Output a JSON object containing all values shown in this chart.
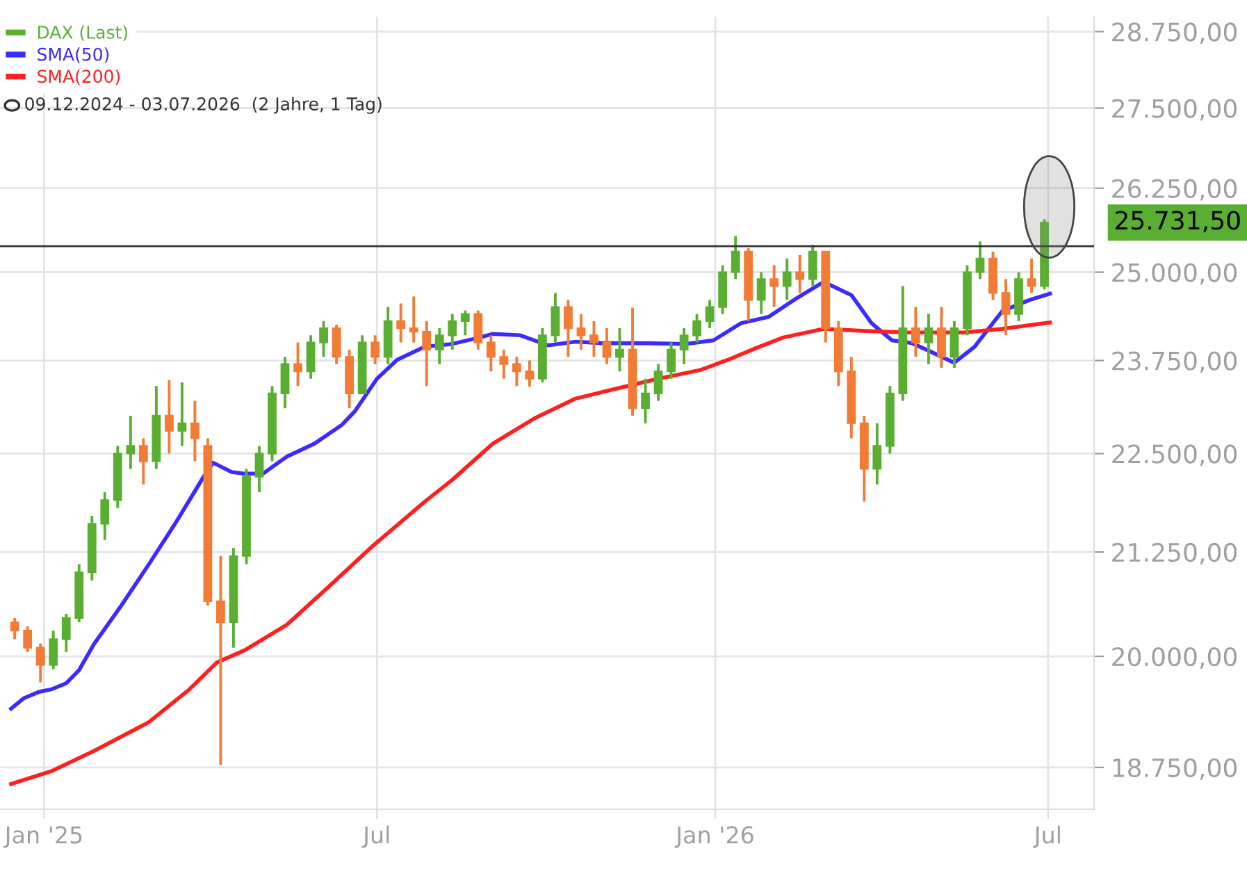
{
  "chart_data": {
    "type": "candlestick",
    "series": [
      {
        "name": "DAX (Last)",
        "color": "#5aaf32",
        "x": [
          "2024-12-16",
          "2024-12-23",
          "2024-12-30",
          "2025-01-06",
          "2025-01-13",
          "2025-01-20",
          "2025-01-27",
          "2025-02-03",
          "2025-02-10",
          "2025-02-17",
          "2025-02-24",
          "2025-03-03",
          "2025-03-10",
          "2025-03-17",
          "2025-03-24",
          "2025-03-31",
          "2025-04-07",
          "2025-04-14",
          "2025-04-21",
          "2025-04-28",
          "2025-05-05",
          "2025-05-12",
          "2025-05-19",
          "2025-05-26",
          "2025-06-02",
          "2025-06-09",
          "2025-06-16",
          "2025-06-23",
          "2025-06-30",
          "2025-07-07",
          "2025-07-14",
          "2025-07-21",
          "2025-07-28",
          "2025-08-04",
          "2025-08-11",
          "2025-08-18",
          "2025-08-25",
          "2025-09-01",
          "2025-09-08",
          "2025-09-15",
          "2025-09-22",
          "2025-09-29",
          "2025-10-06",
          "2025-10-13",
          "2025-10-20",
          "2025-10-27",
          "2025-11-03",
          "2025-11-10",
          "2025-11-17",
          "2025-11-24",
          "2025-12-01",
          "2025-12-08",
          "2025-12-15",
          "2025-12-22",
          "2025-12-29",
          "2026-01-05",
          "2026-01-12",
          "2026-01-19",
          "2026-01-26",
          "2026-02-02",
          "2026-02-09",
          "2026-02-16",
          "2026-02-23",
          "2026-03-02",
          "2026-03-09",
          "2026-03-16",
          "2026-03-23",
          "2026-03-30",
          "2026-04-06",
          "2026-04-13",
          "2026-04-20",
          "2026-04-27",
          "2026-05-04",
          "2026-05-11",
          "2026-05-18",
          "2026-05-25",
          "2026-06-01",
          "2026-06-08",
          "2026-06-15",
          "2026-06-22",
          "2026-06-29"
        ],
        "ohlc": [
          [
            20400,
            20450,
            20200,
            20300
          ],
          [
            20300,
            20350,
            20050,
            20100
          ],
          [
            20100,
            20150,
            19700,
            19900
          ],
          [
            19900,
            20300,
            19850,
            20200
          ],
          [
            20200,
            20500,
            20050,
            20450
          ],
          [
            20450,
            21100,
            20400,
            21000
          ],
          [
            21000,
            21700,
            20900,
            21600
          ],
          [
            21600,
            22000,
            21400,
            21900
          ],
          [
            21900,
            22600,
            21800,
            22500
          ],
          [
            22500,
            23000,
            22300,
            22600
          ],
          [
            22600,
            22700,
            22100,
            22400
          ],
          [
            22400,
            23400,
            22300,
            23000
          ],
          [
            23000,
            23480,
            22500,
            22800
          ],
          [
            22800,
            23450,
            22600,
            22900
          ],
          [
            22900,
            23200,
            22400,
            22700
          ],
          [
            22600,
            22700,
            20600,
            20650
          ],
          [
            20650,
            21200,
            18780,
            20400
          ],
          [
            20400,
            21300,
            20100,
            21200
          ],
          [
            21200,
            22300,
            21100,
            22200
          ],
          [
            22200,
            22600,
            22000,
            22500
          ],
          [
            22500,
            23400,
            22400,
            23300
          ],
          [
            23300,
            23800,
            23100,
            23700
          ],
          [
            23700,
            24000,
            23400,
            23600
          ],
          [
            23600,
            24100,
            23500,
            24000
          ],
          [
            24000,
            24300,
            23800,
            24200
          ],
          [
            24200,
            24250,
            23700,
            23800
          ],
          [
            23800,
            23900,
            23100,
            23300
          ],
          [
            23300,
            24100,
            23300,
            24000
          ],
          [
            24000,
            24100,
            23700,
            23800
          ],
          [
            23800,
            24500,
            23700,
            24300
          ],
          [
            24300,
            24550,
            24000,
            24200
          ],
          [
            24200,
            24650,
            24000,
            24150
          ],
          [
            24150,
            24300,
            23400,
            23900
          ],
          [
            23900,
            24200,
            23700,
            24100
          ],
          [
            24100,
            24400,
            23900,
            24300
          ],
          [
            24300,
            24450,
            24100,
            24400
          ],
          [
            24400,
            24450,
            23900,
            24000
          ],
          [
            24000,
            24100,
            23600,
            23800
          ],
          [
            23800,
            23900,
            23500,
            23700
          ],
          [
            23700,
            23800,
            23400,
            23600
          ],
          [
            23600,
            23750,
            23390,
            23500
          ],
          [
            23500,
            24200,
            23450,
            24100
          ],
          [
            24100,
            24700,
            24000,
            24500
          ],
          [
            24500,
            24600,
            23800,
            24200
          ],
          [
            24200,
            24400,
            23900,
            24100
          ],
          [
            24100,
            24300,
            23800,
            24000
          ],
          [
            24000,
            24200,
            23700,
            23800
          ],
          [
            23800,
            24200,
            23600,
            23900
          ],
          [
            23900,
            24490,
            23000,
            23100
          ],
          [
            23100,
            23500,
            22900,
            23300
          ],
          [
            23300,
            23700,
            23200,
            23600
          ],
          [
            23600,
            24000,
            23500,
            23900
          ],
          [
            23900,
            24200,
            23700,
            24100
          ],
          [
            24100,
            24400,
            24000,
            24300
          ],
          [
            24300,
            24600,
            24200,
            24500
          ],
          [
            24500,
            25100,
            24400,
            25000
          ],
          [
            25000,
            25530,
            24900,
            25300
          ],
          [
            25300,
            25350,
            24300,
            24600
          ],
          [
            24600,
            25000,
            24400,
            24900
          ],
          [
            24900,
            25100,
            24500,
            24800
          ],
          [
            24800,
            25200,
            24600,
            25000
          ],
          [
            25000,
            25250,
            24700,
            24900
          ],
          [
            24900,
            25400,
            24800,
            25300
          ],
          [
            25300,
            25300,
            24000,
            24200
          ],
          [
            24200,
            24300,
            23400,
            23600
          ],
          [
            23600,
            23800,
            22700,
            22900
          ],
          [
            22900,
            23000,
            21880,
            22300
          ],
          [
            22300,
            22900,
            22100,
            22600
          ],
          [
            22600,
            23400,
            22500,
            23300
          ],
          [
            23300,
            24800,
            23200,
            24200
          ],
          [
            24200,
            24500,
            23800,
            24000
          ],
          [
            24000,
            24400,
            23700,
            24200
          ],
          [
            24200,
            24500,
            23650,
            23800
          ],
          [
            23800,
            24300,
            23650,
            24200
          ],
          [
            24200,
            25100,
            24100,
            25000
          ],
          [
            25000,
            25450,
            24900,
            25200
          ],
          [
            25200,
            25300,
            24600,
            24700
          ],
          [
            24700,
            24900,
            24100,
            24400
          ],
          [
            24400,
            25000,
            24300,
            24900
          ],
          [
            24900,
            25200,
            24700,
            24800
          ],
          [
            24800,
            25780,
            24750,
            25731.5
          ]
        ],
        "colors": [
          "#f27b35",
          "#f27b35",
          "#f27b35",
          "#5aaf32",
          "#5aaf32",
          "#5aaf32",
          "#5aaf32",
          "#5aaf32",
          "#5aaf32",
          "#5aaf32",
          "#f27b35",
          "#5aaf32",
          "#f27b35",
          "#5aaf32",
          "#f27b35",
          "#f27b35",
          "#f27b35",
          "#5aaf32",
          "#5aaf32",
          "#5aaf32",
          "#5aaf32",
          "#5aaf32",
          "#f27b35",
          "#5aaf32",
          "#5aaf32",
          "#f27b35",
          "#f27b35",
          "#5aaf32",
          "#f27b35",
          "#5aaf32",
          "#f27b35",
          "#f27b35",
          "#f27b35",
          "#5aaf32",
          "#5aaf32",
          "#5aaf32",
          "#f27b35",
          "#f27b35",
          "#f27b35",
          "#f27b35",
          "#f27b35",
          "#5aaf32",
          "#5aaf32",
          "#f27b35",
          "#f27b35",
          "#f27b35",
          "#f27b35",
          "#5aaf32",
          "#f27b35",
          "#5aaf32",
          "#5aaf32",
          "#5aaf32",
          "#5aaf32",
          "#5aaf32",
          "#5aaf32",
          "#5aaf32",
          "#5aaf32",
          "#f27b35",
          "#5aaf32",
          "#f27b35",
          "#5aaf32",
          "#f27b35",
          "#5aaf32",
          "#f27b35",
          "#f27b35",
          "#f27b35",
          "#f27b35",
          "#5aaf32",
          "#5aaf32",
          "#5aaf32",
          "#f27b35",
          "#5aaf32",
          "#f27b35",
          "#5aaf32",
          "#5aaf32",
          "#5aaf32",
          "#f27b35",
          "#f27b35",
          "#5aaf32",
          "#f27b35",
          "#5aaf32"
        ]
      },
      {
        "name": "SMA(50)",
        "type": "line",
        "color": "#3b2bff",
        "x": [
          "2024-12-14",
          "2024-12-21",
          "2024-12-29",
          "2025-01-05",
          "2025-01-13",
          "2025-01-20",
          "2025-01-28",
          "2025-02-12",
          "2025-02-27",
          "2025-03-14",
          "2025-03-29",
          "2025-04-03",
          "2025-04-13",
          "2025-04-20",
          "2025-04-30",
          "2025-05-13",
          "2025-05-28",
          "2025-06-12",
          "2025-06-19",
          "2025-07-01",
          "2025-07-12",
          "2025-07-27",
          "2025-08-11",
          "2025-08-26",
          "2025-09-02",
          "2025-09-17",
          "2025-10-02",
          "2025-10-17",
          "2025-11-01",
          "2025-11-24",
          "2025-12-16",
          "2025-12-31",
          "2026-01-15",
          "2026-01-30",
          "2026-02-14",
          "2026-03-01",
          "2026-03-16",
          "2026-03-27",
          "2026-04-07",
          "2026-04-18",
          "2026-04-30",
          "2026-05-11",
          "2026-05-22",
          "2026-06-06",
          "2026-06-21",
          "2026-07-02"
        ],
        "values": [
          19400,
          19520,
          19590,
          19620,
          19690,
          19840,
          20140,
          20600,
          21100,
          21630,
          22210,
          22380,
          22260,
          22240,
          22240,
          22460,
          22630,
          22880,
          23060,
          23500,
          23760,
          23940,
          23980,
          24070,
          24120,
          24100,
          23960,
          24010,
          23990,
          23990,
          23980,
          24030,
          24270,
          24360,
          24620,
          24860,
          24670,
          24270,
          24030,
          23990,
          23850,
          23720,
          23940,
          24440,
          24600,
          24690
        ]
      },
      {
        "name": "SMA(200)",
        "type": "line",
        "color": "#ff1f1f",
        "x": [
          "2024-12-14",
          "2025-01-05",
          "2025-01-28",
          "2025-02-27",
          "2025-03-21",
          "2025-04-05",
          "2025-04-20",
          "2025-05-13",
          "2025-06-05",
          "2025-06-28",
          "2025-07-27",
          "2025-08-11",
          "2025-09-02",
          "2025-09-25",
          "2025-10-17",
          "2025-11-09",
          "2025-12-01",
          "2025-12-24",
          "2026-01-08",
          "2026-01-23",
          "2026-02-07",
          "2026-03-01",
          "2026-03-24",
          "2026-04-16",
          "2026-05-16",
          "2026-06-06",
          "2026-07-02"
        ],
        "values": [
          18570,
          18710,
          18930,
          19250,
          19620,
          19930,
          20070,
          20370,
          20830,
          21310,
          21880,
          22160,
          22630,
          22970,
          23230,
          23370,
          23500,
          23620,
          23760,
          23920,
          24070,
          24190,
          24160,
          24140,
          24140,
          24190,
          24280
        ]
      }
    ],
    "xlim": [
      "2024-12-08",
      "2026-07-26"
    ],
    "xticks": [
      {
        "value": "2025-01-01",
        "label": "Jan '25"
      },
      {
        "value": "2025-07-01",
        "label": "Jul"
      },
      {
        "value": "2026-01-01",
        "label": "Jan '26"
      },
      {
        "value": "2026-07-01",
        "label": "Jul"
      }
    ],
    "log": true,
    "ylim": [
      18300,
      29000
    ],
    "yticks": [
      {
        "value": 18750,
        "label": "18.750,00"
      },
      {
        "value": 20000,
        "label": "20.000,00"
      },
      {
        "value": 21250,
        "label": "21.250,00"
      },
      {
        "value": 22500,
        "label": "22.500,00"
      },
      {
        "value": 23750,
        "label": "23.750,00"
      },
      {
        "value": 25000,
        "label": "25.000,00"
      },
      {
        "value": 26250,
        "label": "26.250,00"
      },
      {
        "value": 27500,
        "label": "27.500,00"
      },
      {
        "value": 28750,
        "label": "28.750,00"
      }
    ],
    "ref_lines": [
      {
        "axis": "y",
        "value": 25381,
        "color": "#333333"
      }
    ],
    "annotations": [
      "09.12.2024 - 03.07.2026  (2 Jahre, 1 Tag)",
      {
        "text": "25.731,50",
        "x": "2026-07-03",
        "y": 25731.5
      }
    ],
    "grid": true,
    "legend": "top left"
  }
}
